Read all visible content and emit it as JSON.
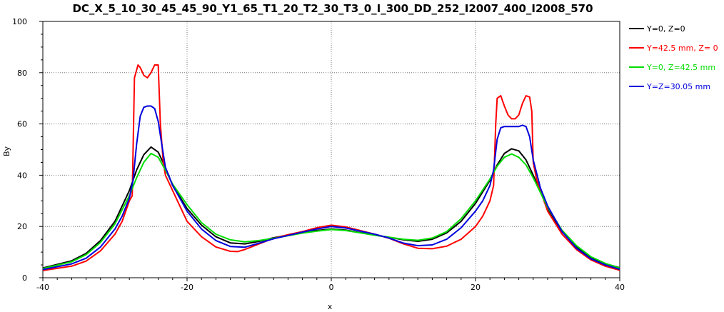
{
  "chart_data": {
    "type": "line",
    "title": "DC_X_5_10_30_45_45_90_Y1_65_T1_20_T2_30_T3_0_I_300_DD_252_I2007_400_I2008_570",
    "xlabel": "x",
    "ylabel": "By",
    "xlim": [
      -40,
      40
    ],
    "ylim": [
      0,
      100
    ],
    "x_ticks": [
      -40,
      -20,
      0,
      20,
      40
    ],
    "y_ticks": [
      0,
      20,
      40,
      60,
      80,
      100
    ],
    "grid": true,
    "legend_position": "top-right",
    "series": [
      {
        "name": "Y=0, Z=0",
        "color": "#000000",
        "points": [
          [
            -40,
            3.8
          ],
          [
            -36,
            6.6
          ],
          [
            -34,
            9.5
          ],
          [
            -32,
            14.5
          ],
          [
            -30,
            22
          ],
          [
            -28,
            34
          ],
          [
            -27,
            42
          ],
          [
            -26,
            48
          ],
          [
            -25,
            51
          ],
          [
            -24,
            49
          ],
          [
            -23,
            43
          ],
          [
            -22,
            36
          ],
          [
            -20,
            27
          ],
          [
            -18,
            20.5
          ],
          [
            -16,
            16
          ],
          [
            -14,
            13.6
          ],
          [
            -12,
            13.2
          ],
          [
            -10,
            14.2
          ],
          [
            -8,
            15.6
          ],
          [
            -6,
            16.6
          ],
          [
            -4,
            17.6
          ],
          [
            -2,
            18.4
          ],
          [
            0,
            19
          ],
          [
            2,
            18.6
          ],
          [
            4,
            17.6
          ],
          [
            6,
            16.6
          ],
          [
            8,
            15.8
          ],
          [
            10,
            14.8
          ],
          [
            12,
            14.2
          ],
          [
            14,
            15
          ],
          [
            16,
            17.5
          ],
          [
            18,
            22
          ],
          [
            20,
            29
          ],
          [
            22,
            38
          ],
          [
            23,
            44
          ],
          [
            24,
            48.5
          ],
          [
            25,
            50.3
          ],
          [
            26,
            49.5
          ],
          [
            27,
            46
          ],
          [
            28,
            40
          ],
          [
            30,
            27
          ],
          [
            32,
            18
          ],
          [
            34,
            12
          ],
          [
            36,
            8
          ],
          [
            38,
            5.5
          ],
          [
            40,
            3.9
          ]
        ]
      },
      {
        "name": "Y=42.5 mm,  Z= 0",
        "color": "#ff0000",
        "points": [
          [
            -40,
            2.8
          ],
          [
            -36,
            4.5
          ],
          [
            -34,
            6.5
          ],
          [
            -32,
            10.5
          ],
          [
            -30,
            17
          ],
          [
            -29,
            22
          ],
          [
            -28,
            30
          ],
          [
            -27.6,
            32
          ],
          [
            -27.3,
            78
          ],
          [
            -26.8,
            83
          ],
          [
            -26.5,
            82
          ],
          [
            -26,
            79
          ],
          [
            -25.5,
            78
          ],
          [
            -25,
            80
          ],
          [
            -24.5,
            83
          ],
          [
            -24,
            83
          ],
          [
            -23.7,
            60
          ],
          [
            -23.3,
            45
          ],
          [
            -23,
            40
          ],
          [
            -22,
            34
          ],
          [
            -21,
            28
          ],
          [
            -20,
            22
          ],
          [
            -18,
            16
          ],
          [
            -16,
            12
          ],
          [
            -14,
            10.3
          ],
          [
            -13,
            10.2
          ],
          [
            -12,
            11
          ],
          [
            -10,
            13.2
          ],
          [
            -8,
            15.4
          ],
          [
            -6,
            16.8
          ],
          [
            -4,
            18
          ],
          [
            -2,
            19.5
          ],
          [
            0,
            20.5
          ],
          [
            2,
            19.8
          ],
          [
            4,
            18.4
          ],
          [
            6,
            17
          ],
          [
            8,
            15.4
          ],
          [
            10,
            13.2
          ],
          [
            12,
            11.5
          ],
          [
            14,
            11.3
          ],
          [
            16,
            12.3
          ],
          [
            18,
            15
          ],
          [
            20,
            20
          ],
          [
            21,
            24
          ],
          [
            22,
            30
          ],
          [
            22.5,
            36
          ],
          [
            22.8,
            60
          ],
          [
            23,
            70
          ],
          [
            23.5,
            71
          ],
          [
            24,
            67
          ],
          [
            24.5,
            63.5
          ],
          [
            25,
            62
          ],
          [
            25.5,
            62
          ],
          [
            26,
            63.5
          ],
          [
            26.5,
            68
          ],
          [
            27,
            71
          ],
          [
            27.5,
            70.5
          ],
          [
            27.8,
            65
          ],
          [
            28,
            45
          ],
          [
            28.5,
            38
          ],
          [
            30,
            26
          ],
          [
            32,
            17
          ],
          [
            34,
            11
          ],
          [
            36,
            7
          ],
          [
            38,
            4.5
          ],
          [
            40,
            2.9
          ]
        ]
      },
      {
        "name": "Y=0, Z=42.5 mm",
        "color": "#00dd00",
        "points": [
          [
            -40,
            3.6
          ],
          [
            -36,
            6.2
          ],
          [
            -34,
            9
          ],
          [
            -32,
            13.8
          ],
          [
            -30,
            21
          ],
          [
            -28,
            32
          ],
          [
            -27,
            39
          ],
          [
            -26,
            45
          ],
          [
            -25,
            48.5
          ],
          [
            -24,
            47
          ],
          [
            -23,
            42
          ],
          [
            -22,
            36.5
          ],
          [
            -20,
            28.5
          ],
          [
            -18,
            21.5
          ],
          [
            -16,
            17
          ],
          [
            -14,
            14.8
          ],
          [
            -12,
            14
          ],
          [
            -10,
            14.5
          ],
          [
            -8,
            15.4
          ],
          [
            -6,
            16.4
          ],
          [
            -4,
            17.4
          ],
          [
            -2,
            18.2
          ],
          [
            0,
            18.8
          ],
          [
            2,
            18.4
          ],
          [
            4,
            17.5
          ],
          [
            6,
            16.6
          ],
          [
            8,
            15.8
          ],
          [
            10,
            15
          ],
          [
            12,
            14.6
          ],
          [
            14,
            15.5
          ],
          [
            16,
            18
          ],
          [
            18,
            23
          ],
          [
            20,
            30
          ],
          [
            22,
            38.5
          ],
          [
            23,
            43.5
          ],
          [
            24,
            47
          ],
          [
            25,
            48.3
          ],
          [
            26,
            47
          ],
          [
            27,
            44
          ],
          [
            28,
            39
          ],
          [
            30,
            27.5
          ],
          [
            32,
            18.5
          ],
          [
            34,
            12.5
          ],
          [
            36,
            8.2
          ],
          [
            38,
            5.6
          ],
          [
            40,
            3.8
          ]
        ]
      },
      {
        "name": "Y=Z=30.05 mm",
        "color": "#0000dd",
        "points": [
          [
            -40,
            3.2
          ],
          [
            -36,
            5.4
          ],
          [
            -34,
            7.6
          ],
          [
            -32,
            12
          ],
          [
            -30,
            19
          ],
          [
            -29,
            24
          ],
          [
            -28,
            31
          ],
          [
            -27.5,
            38
          ],
          [
            -27,
            52
          ],
          [
            -26.5,
            63
          ],
          [
            -26,
            66.5
          ],
          [
            -25.5,
            67
          ],
          [
            -25,
            67
          ],
          [
            -24.5,
            66
          ],
          [
            -24,
            61
          ],
          [
            -23.5,
            52
          ],
          [
            -23,
            43
          ],
          [
            -22,
            36
          ],
          [
            -20,
            26
          ],
          [
            -18,
            19
          ],
          [
            -16,
            14.5
          ],
          [
            -14,
            12.2
          ],
          [
            -12,
            11.9
          ],
          [
            -10,
            13.5
          ],
          [
            -8,
            15.2
          ],
          [
            -6,
            16.5
          ],
          [
            -4,
            17.8
          ],
          [
            -2,
            19
          ],
          [
            0,
            20
          ],
          [
            2,
            19.4
          ],
          [
            4,
            18.2
          ],
          [
            6,
            17
          ],
          [
            8,
            15.5
          ],
          [
            10,
            13.5
          ],
          [
            12,
            12.5
          ],
          [
            14,
            12.8
          ],
          [
            16,
            15
          ],
          [
            18,
            19.5
          ],
          [
            20,
            26
          ],
          [
            21,
            30
          ],
          [
            22,
            36
          ],
          [
            22.5,
            42
          ],
          [
            23,
            54
          ],
          [
            23.5,
            58.5
          ],
          [
            24,
            59
          ],
          [
            25,
            59
          ],
          [
            26,
            59
          ],
          [
            26.5,
            59.5
          ],
          [
            27,
            59
          ],
          [
            27.5,
            55
          ],
          [
            28,
            46
          ],
          [
            29,
            35
          ],
          [
            30,
            28
          ],
          [
            32,
            18
          ],
          [
            34,
            11.5
          ],
          [
            36,
            7.4
          ],
          [
            38,
            5
          ],
          [
            40,
            3.3
          ]
        ]
      }
    ]
  }
}
